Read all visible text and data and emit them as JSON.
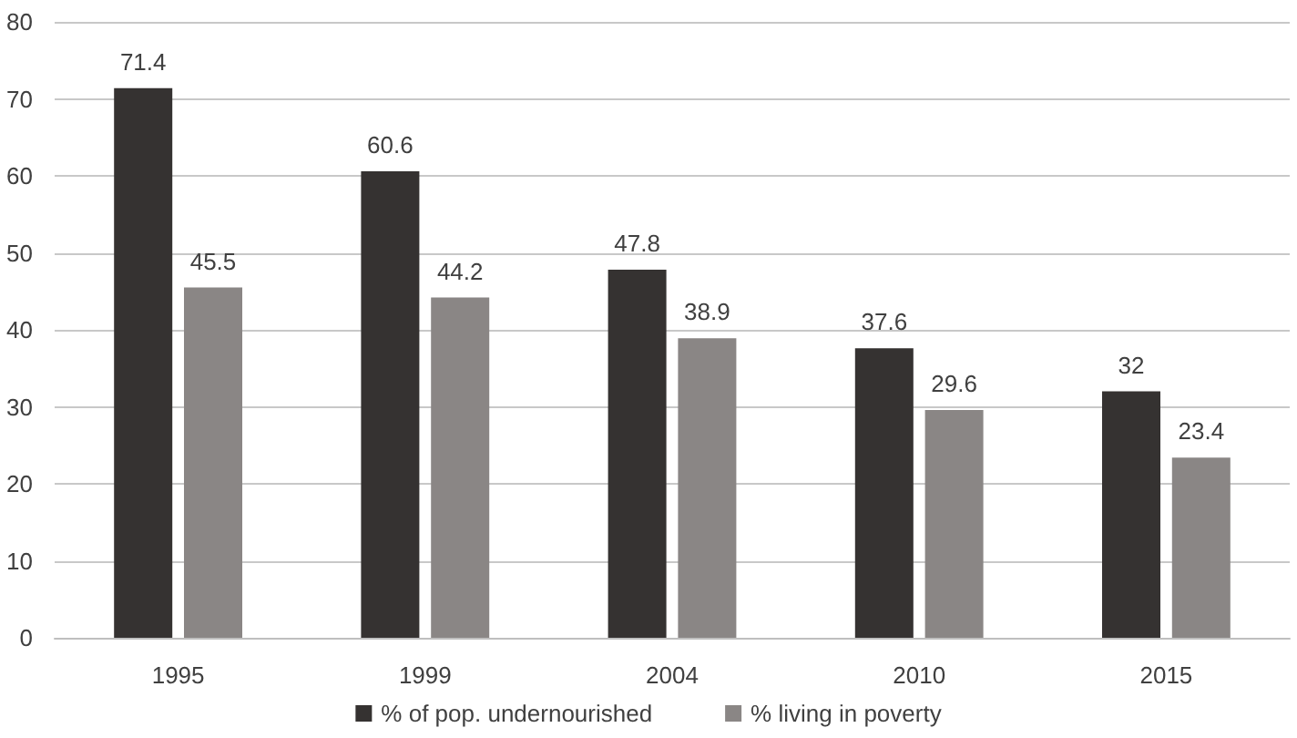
{
  "chart_data": {
    "type": "bar",
    "categories": [
      "1995",
      "1999",
      "2004",
      "2010",
      "2015"
    ],
    "series": [
      {
        "name": "% of pop. undernourished",
        "color": "#353231",
        "values": [
          71.4,
          60.6,
          47.8,
          37.6,
          32
        ]
      },
      {
        "name": "% living in poverty",
        "color": "#8a8685",
        "values": [
          45.5,
          44.2,
          38.9,
          29.6,
          23.4
        ]
      }
    ],
    "ylim": [
      0,
      80
    ],
    "yticks": [
      0,
      10,
      20,
      30,
      40,
      50,
      60,
      70,
      80
    ],
    "grid": "y",
    "legend": "bottom",
    "data_labels": true
  }
}
